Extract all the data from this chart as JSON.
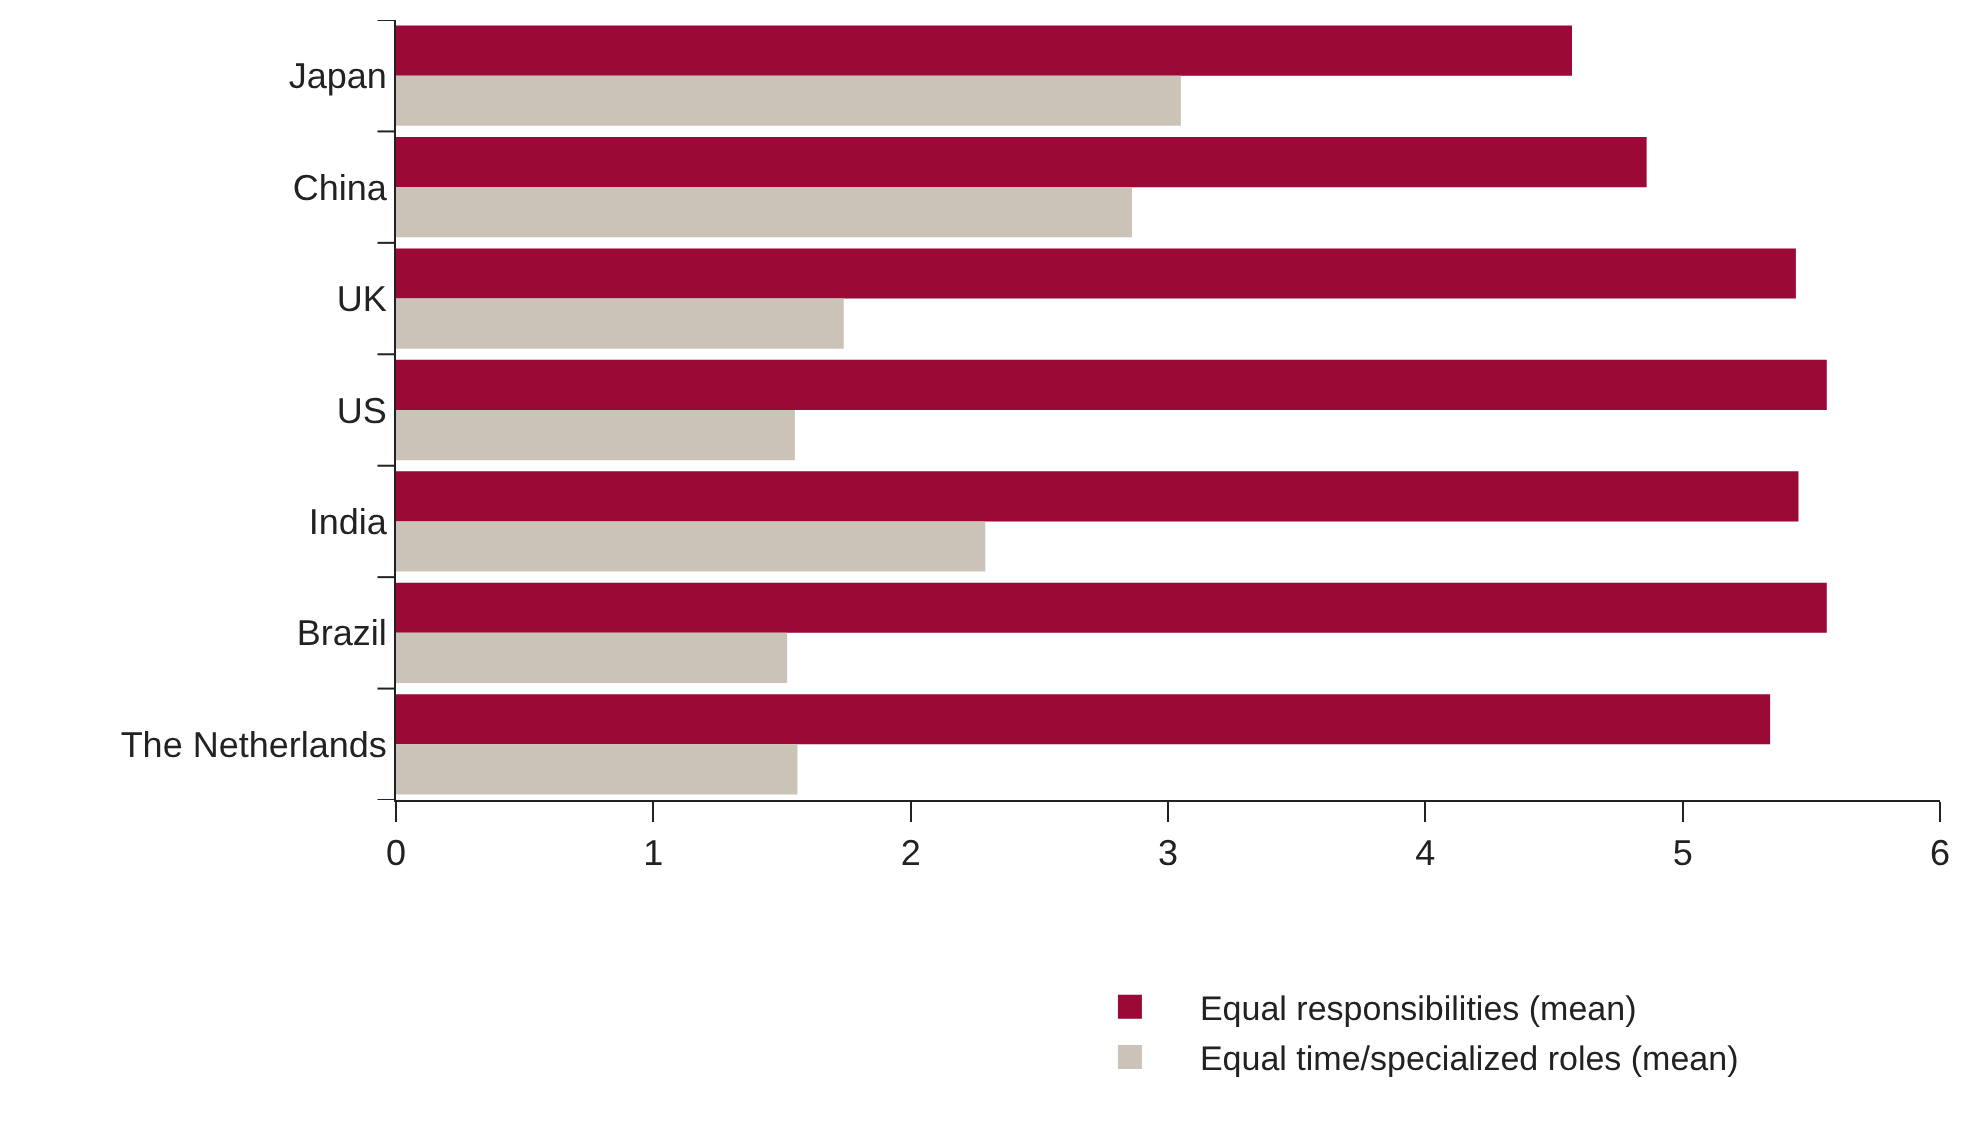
{
  "chart_data": {
    "type": "bar",
    "orientation": "horizontal",
    "categories": [
      "Japan",
      "China",
      "UK",
      "US",
      "India",
      "Brazil",
      "The Netherlands"
    ],
    "series": [
      {
        "name": "Equal responsibilities (mean)",
        "color": "#9b0a36",
        "values": [
          4.57,
          4.86,
          5.44,
          5.56,
          5.45,
          5.56,
          5.34
        ]
      },
      {
        "name": "Equal time/specialized roles (mean)",
        "color": "#cbc3b8",
        "values": [
          3.05,
          2.86,
          1.74,
          1.55,
          2.29,
          1.52,
          1.56
        ]
      }
    ],
    "xlim": [
      0,
      6
    ],
    "xticks": [
      0,
      1,
      2,
      3,
      4,
      5,
      6
    ],
    "grid": false,
    "legend": "bottom right"
  }
}
